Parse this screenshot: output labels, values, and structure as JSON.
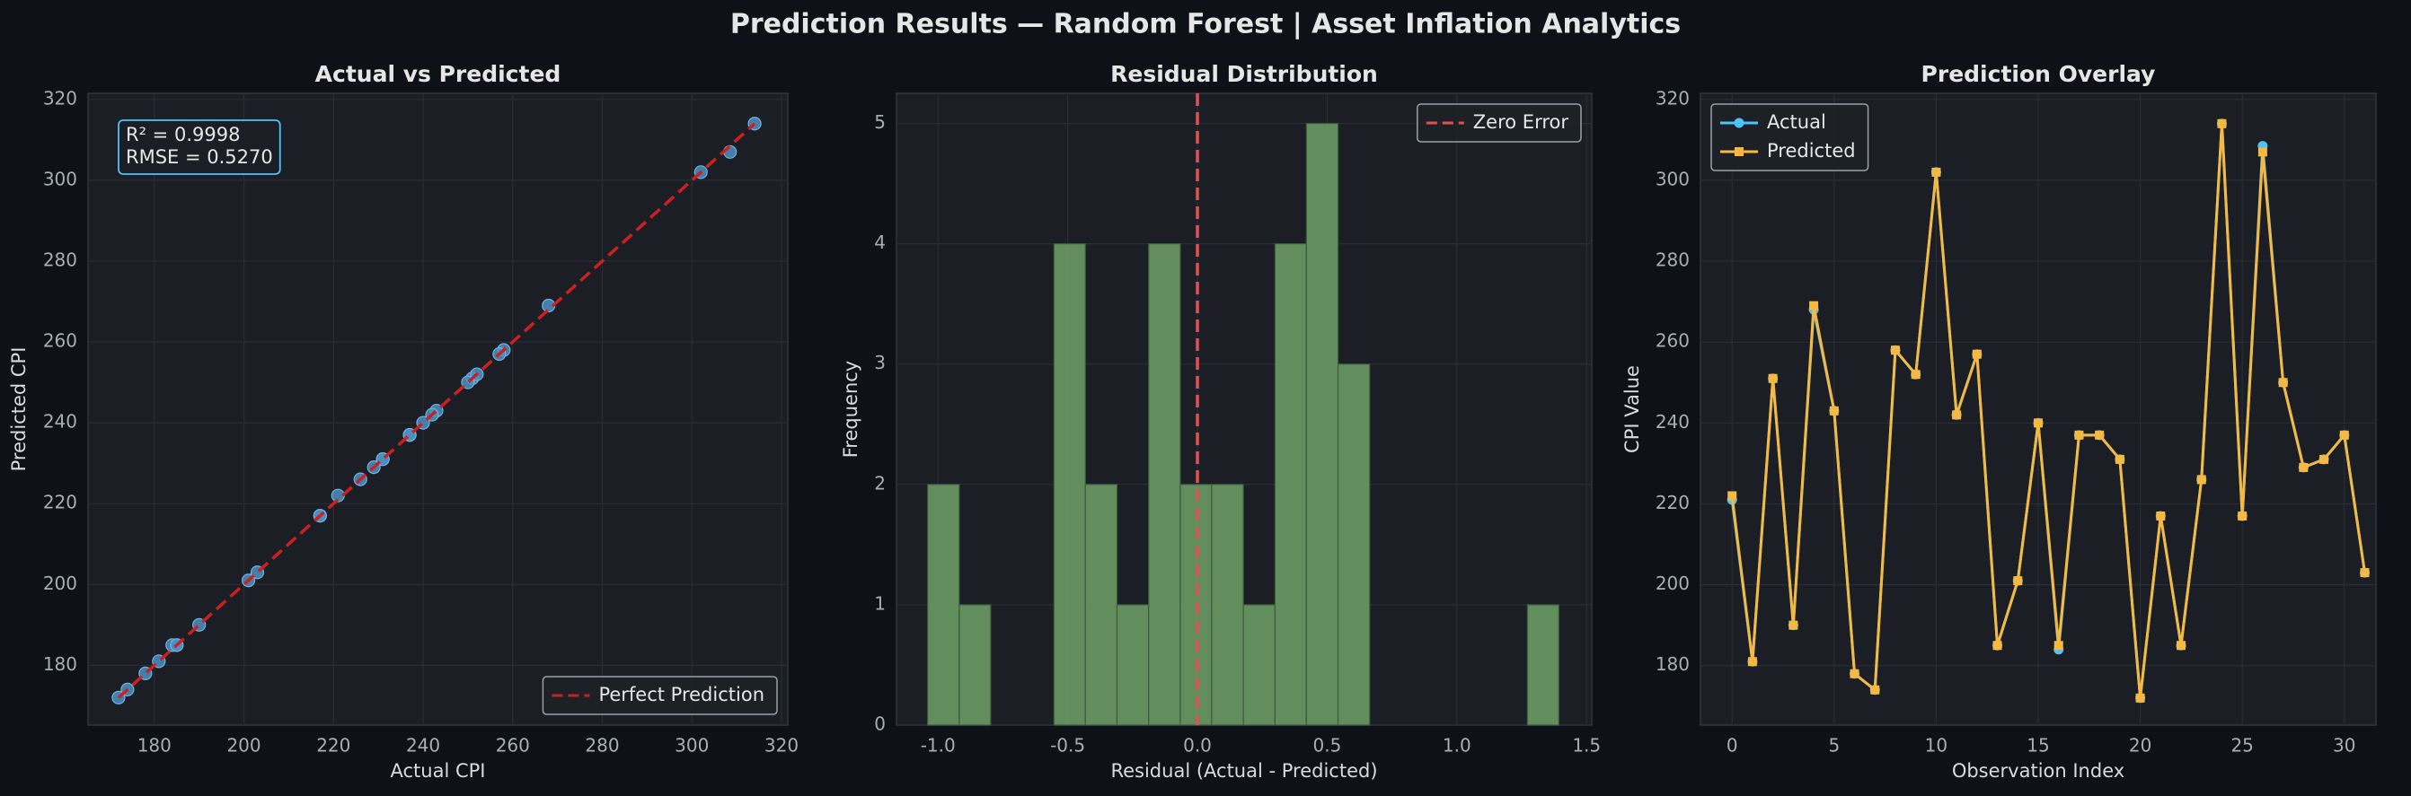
{
  "title": "Prediction Results — Random Forest | Asset Inflation Analytics",
  "chart_data": [
    {
      "type": "scatter",
      "title": "Actual vs Predicted",
      "xlabel": "Actual CPI",
      "ylabel": "Predicted CPI",
      "x": [
        221,
        181,
        251,
        190,
        268,
        243,
        178,
        174,
        258,
        252,
        302,
        242,
        257,
        185,
        201,
        240,
        184,
        237,
        237,
        231,
        172,
        217,
        185,
        226,
        314,
        217,
        308.5,
        250,
        229,
        231,
        237,
        203
      ],
      "series": [
        {
          "name": "Predicted",
          "color": "#4a90c2",
          "values": [
            222,
            181,
            251,
            190,
            269,
            243,
            178,
            174,
            258,
            252,
            302,
            242,
            257,
            185,
            201,
            240,
            185,
            237,
            237,
            231,
            172,
            217,
            185,
            226,
            314,
            217,
            307,
            250,
            229,
            231,
            237,
            203
          ]
        }
      ],
      "reference_line": {
        "name": "Perfect Prediction",
        "color": "#cc2020",
        "points": [
          172,
          314
        ]
      },
      "annotations": [
        "R² = 0.9998",
        "RMSE = 0.5270"
      ],
      "xlim": [
        165.2,
        321.4
      ],
      "ylim": [
        165.2,
        321.5
      ],
      "xticks": [
        180,
        200,
        220,
        240,
        260,
        280,
        300,
        320
      ],
      "yticks": [
        180,
        200,
        220,
        240,
        260,
        280,
        300,
        320
      ],
      "grid": true,
      "legend": "lower right"
    },
    {
      "type": "histogram",
      "title": "Residual Distribution",
      "xlabel": "Residual (Actual - Predicted)",
      "ylabel": "Frequency",
      "bins": [
        -1.04,
        -0.918,
        -0.797,
        -0.675,
        -0.553,
        -0.432,
        -0.31,
        -0.188,
        -0.066,
        0.055,
        0.177,
        0.299,
        0.42,
        0.542,
        0.664,
        0.785,
        0.907,
        1.029,
        1.15,
        1.272,
        1.393
      ],
      "values": [
        2,
        1,
        0,
        0,
        4,
        2,
        1,
        4,
        2,
        2,
        1,
        4,
        5,
        3,
        0,
        0,
        0,
        0,
        0,
        1
      ],
      "color": "#6a9a64",
      "vline": {
        "name": "Zero Error",
        "value": 0,
        "color": "#e05252"
      },
      "xlim": [
        -1.16,
        1.52
      ],
      "ylim": [
        0,
        5.25
      ],
      "xticks": [
        {
          "value": -1,
          "label": "-1.0"
        },
        {
          "value": -0.5,
          "label": "-0.5"
        },
        {
          "value": 0,
          "label": "0.0"
        },
        {
          "value": 0.5,
          "label": "0.5"
        },
        {
          "value": 1,
          "label": "1.0"
        },
        {
          "value": 1.5,
          "label": "1.5"
        }
      ],
      "yticks": [
        0,
        1,
        2,
        3,
        4,
        5
      ],
      "grid": true,
      "legend": "upper right"
    },
    {
      "type": "line",
      "title": "Prediction Overlay",
      "xlabel": "Observation Index",
      "ylabel": "CPI Value",
      "x": [
        0,
        1,
        2,
        3,
        4,
        5,
        6,
        7,
        8,
        9,
        10,
        11,
        12,
        13,
        14,
        15,
        16,
        17,
        18,
        19,
        20,
        21,
        22,
        23,
        24,
        25,
        26,
        27,
        28,
        29,
        30,
        31
      ],
      "series": [
        {
          "name": "Actual",
          "color": "#4fc3f7",
          "marker": "circle",
          "values": [
            221,
            181,
            251,
            190,
            268,
            243,
            178,
            174,
            258,
            252,
            302,
            242,
            257,
            185,
            201,
            240,
            184,
            237,
            237,
            231,
            172,
            217,
            185,
            226,
            314,
            217,
            308.5,
            250,
            229,
            231,
            237,
            203
          ]
        },
        {
          "name": "Predicted",
          "color": "#f5b942",
          "marker": "square",
          "values": [
            222,
            181,
            251,
            190,
            269,
            243,
            178,
            174,
            258,
            252,
            302,
            242,
            257,
            185,
            201,
            240,
            185,
            237,
            237,
            231,
            172,
            217,
            185,
            226,
            314,
            217,
            307,
            250,
            229,
            231,
            237,
            203
          ]
        }
      ],
      "xlim": [
        -1.55,
        31.55
      ],
      "ylim": [
        165.3,
        321.5
      ],
      "xticks": [
        0,
        5,
        10,
        15,
        20,
        25,
        30
      ],
      "yticks": [
        180,
        200,
        220,
        240,
        260,
        280,
        300,
        320
      ],
      "grid": true,
      "legend": "upper left"
    }
  ]
}
